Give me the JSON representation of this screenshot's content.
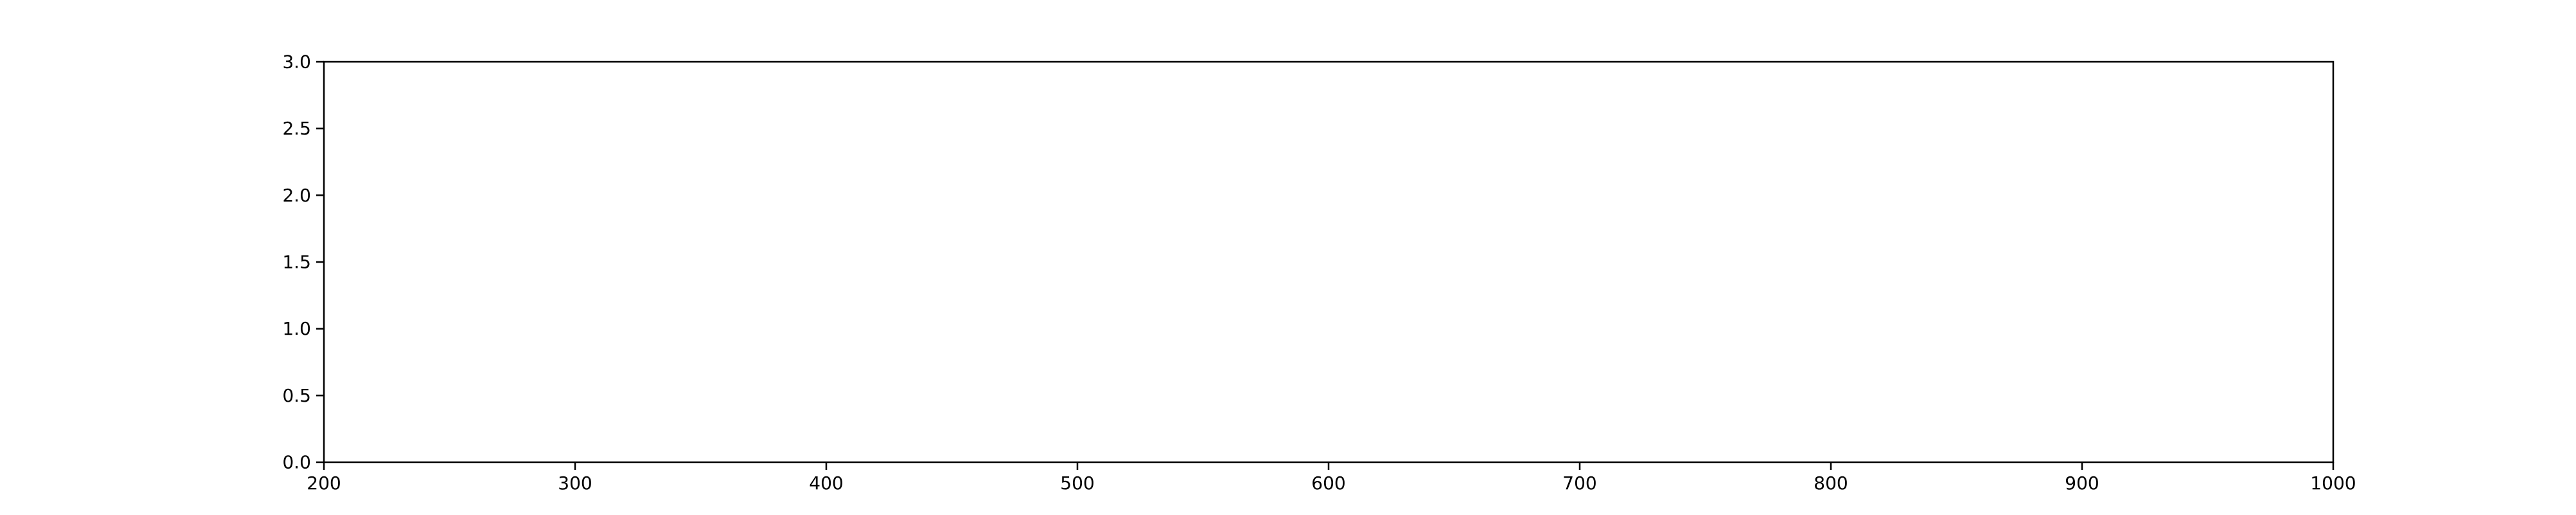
{
  "chart_data": {
    "type": "line",
    "title": "",
    "xlabel": "",
    "ylabel": "",
    "xlim": [
      200,
      1000
    ],
    "ylim": [
      0,
      3
    ],
    "x_ticks": [
      200,
      300,
      400,
      500,
      600,
      700,
      800,
      900,
      1000
    ],
    "x_tick_labels": [
      "200",
      "300",
      "400",
      "500",
      "600",
      "700",
      "800",
      "900",
      "1000"
    ],
    "y_ticks": [
      0,
      0.5,
      1,
      1.5,
      2,
      2.5,
      3
    ],
    "y_tick_labels": [
      "0.0",
      "0.5",
      "1.0",
      "1.5",
      "2.0",
      "2.5",
      "3.0"
    ],
    "grid": false,
    "series": []
  }
}
